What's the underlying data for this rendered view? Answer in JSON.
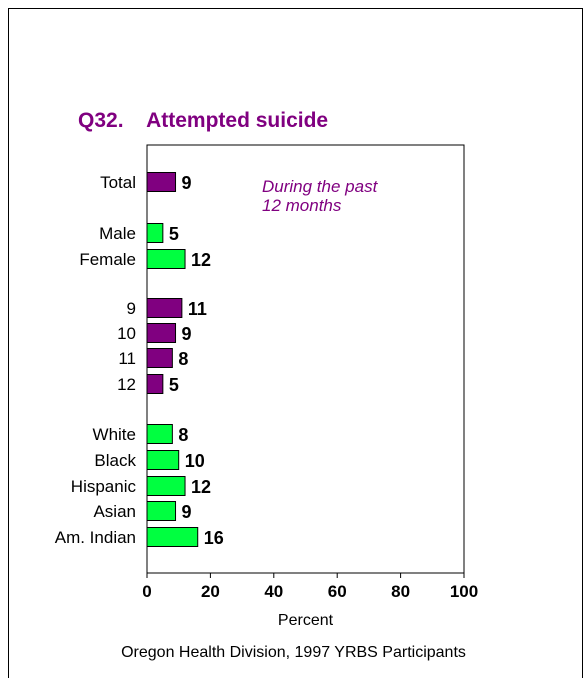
{
  "colors": {
    "title": "#800080",
    "annotation": "#800080",
    "purple_bar": "#800080",
    "green_bar": "#00ff40",
    "text": "#000000"
  },
  "chart_data": {
    "type": "bar",
    "orientation": "horizontal",
    "title": "Q32.    Attempted suicide",
    "annotation": "During the past\n12 months",
    "xlabel": "Percent",
    "xlim": [
      0,
      100
    ],
    "xticks": [
      "0",
      "20",
      "40",
      "60",
      "80",
      "100"
    ],
    "grid": false,
    "categories": [
      "Total",
      "Male",
      "Female",
      "9",
      "10",
      "11",
      "12",
      "White",
      "Black",
      "Hispanic",
      "Asian",
      "Am. Indian"
    ],
    "values": [
      9,
      5,
      12,
      11,
      9,
      8,
      5,
      8,
      10,
      12,
      9,
      16
    ],
    "bar_colors": [
      "purple_bar",
      "green_bar",
      "green_bar",
      "purple_bar",
      "purple_bar",
      "purple_bar",
      "purple_bar",
      "green_bar",
      "green_bar",
      "green_bar",
      "green_bar",
      "green_bar"
    ]
  },
  "footer": {
    "source": "Oregon Health Division, 1997 YRBS Participants"
  }
}
